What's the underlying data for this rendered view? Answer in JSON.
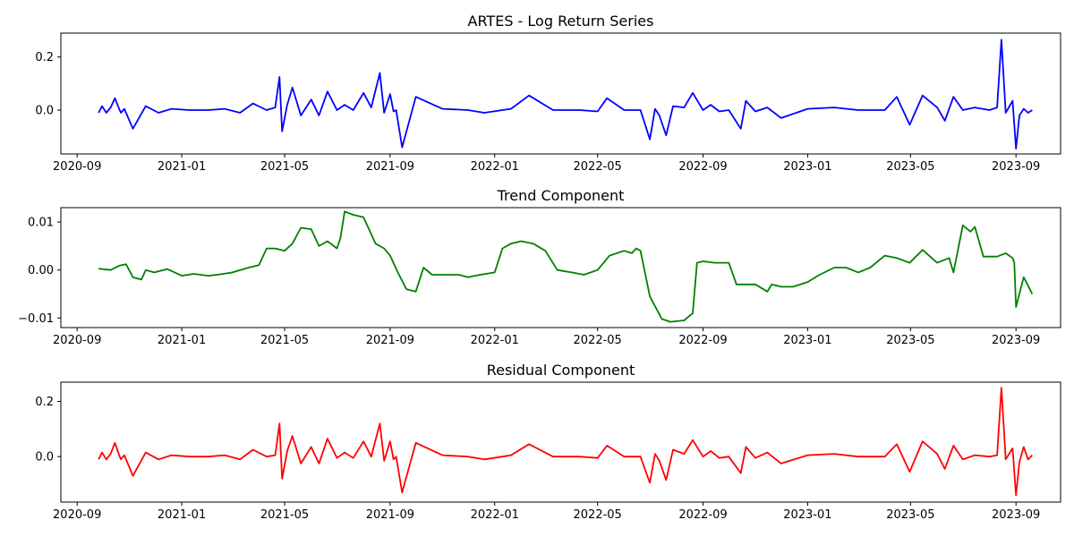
{
  "chart_data": [
    {
      "type": "line",
      "title": "ARTES - Log Return Series",
      "color": "#0000ff",
      "xlim": [
        "2020-08-13",
        "2023-10-23"
      ],
      "ylim": [
        -0.165,
        0.29
      ],
      "x_ticks": [
        "2020-09",
        "2021-01",
        "2021-05",
        "2021-09",
        "2022-01",
        "2022-05",
        "2022-09",
        "2023-01",
        "2023-05",
        "2023-09"
      ],
      "y_ticks": [
        "0.0",
        "0.2"
      ],
      "y_tick_values": [
        0.0,
        0.2
      ],
      "series": [
        {
          "x": [
            "2020-09-26",
            "2020-09-30",
            "2020-10-05",
            "2020-10-10",
            "2020-10-15",
            "2020-10-20",
            "2020-10-22",
            "2020-10-26",
            "2020-11-05",
            "2020-11-20",
            "2020-12-05",
            "2020-12-20",
            "2021-01-10",
            "2021-02-01",
            "2021-02-20",
            "2021-03-10",
            "2021-03-25",
            "2021-04-10",
            "2021-04-20",
            "2021-04-25",
            "2021-04-28",
            "2021-05-04",
            "2021-05-10",
            "2021-05-20",
            "2021-06-01",
            "2021-06-10",
            "2021-06-20",
            "2021-07-01",
            "2021-07-10",
            "2021-07-20",
            "2021-08-01",
            "2021-08-10",
            "2021-08-20",
            "2021-08-25",
            "2021-09-01",
            "2021-09-05",
            "2021-09-08",
            "2021-09-15",
            "2021-10-01",
            "2021-11-01",
            "2021-12-01",
            "2021-12-20",
            "2022-01-10",
            "2022-01-20",
            "2022-02-10",
            "2022-03-10",
            "2022-04-10",
            "2022-05-01",
            "2022-05-12",
            "2022-06-01",
            "2022-06-20",
            "2022-07-01",
            "2022-07-07",
            "2022-07-12",
            "2022-07-20",
            "2022-07-28",
            "2022-08-10",
            "2022-08-20",
            "2022-09-01",
            "2022-09-10",
            "2022-09-20",
            "2022-10-01",
            "2022-10-15",
            "2022-10-21",
            "2022-11-01",
            "2022-11-15",
            "2022-12-01",
            "2023-01-01",
            "2023-02-01",
            "2023-03-01",
            "2023-04-01",
            "2023-04-15",
            "2023-04-30",
            "2023-05-15",
            "2023-06-01",
            "2023-06-10",
            "2023-06-20",
            "2023-07-01",
            "2023-07-15",
            "2023-08-01",
            "2023-08-10",
            "2023-08-15",
            "2023-08-20",
            "2023-08-28",
            "2023-09-01",
            "2023-09-05",
            "2023-09-10",
            "2023-09-15",
            "2023-09-20"
          ],
          "y": [
            -0.01,
            0.015,
            -0.01,
            0.01,
            0.045,
            0.005,
            -0.01,
            0.005,
            -0.07,
            0.015,
            -0.01,
            0.005,
            0.0,
            0.0,
            0.005,
            -0.01,
            0.025,
            0.0,
            0.01,
            0.125,
            -0.08,
            0.02,
            0.085,
            -0.02,
            0.04,
            -0.02,
            0.07,
            0.0,
            0.02,
            0.0,
            0.065,
            0.01,
            0.14,
            -0.01,
            0.06,
            -0.005,
            0.0,
            -0.14,
            0.05,
            0.005,
            0.0,
            -0.01,
            0.0,
            0.005,
            0.055,
            0.0,
            0.0,
            -0.005,
            0.045,
            0.0,
            0.0,
            -0.11,
            0.005,
            -0.02,
            -0.095,
            0.015,
            0.01,
            0.065,
            0.0,
            0.02,
            -0.005,
            0.0,
            -0.07,
            0.035,
            -0.005,
            0.01,
            -0.03,
            0.005,
            0.01,
            0.0,
            0.0,
            0.05,
            -0.055,
            0.055,
            0.01,
            -0.04,
            0.05,
            0.0,
            0.01,
            0.0,
            0.01,
            0.265,
            -0.01,
            0.035,
            -0.145,
            -0.02,
            0.005,
            -0.01,
            0.0
          ]
        }
      ]
    },
    {
      "type": "line",
      "title": "Trend Component",
      "color": "#008000",
      "xlim": [
        "2020-08-13",
        "2023-10-23"
      ],
      "ylim": [
        -0.012,
        0.013
      ],
      "x_ticks": [
        "2020-09",
        "2021-01",
        "2021-05",
        "2021-09",
        "2022-01",
        "2022-05",
        "2022-09",
        "2023-01",
        "2023-05",
        "2023-09"
      ],
      "y_ticks": [
        "−0.01",
        "0.00",
        "0.01"
      ],
      "y_tick_values": [
        -0.01,
        0.0,
        0.01
      ],
      "series": [
        {
          "x": [
            "2020-09-26",
            "2020-10-10",
            "2020-10-20",
            "2020-10-28",
            "2020-11-05",
            "2020-11-15",
            "2020-11-20",
            "2020-11-30",
            "2020-12-15",
            "2021-01-01",
            "2021-01-15",
            "2021-02-01",
            "2021-02-15",
            "2021-03-01",
            "2021-03-20",
            "2021-04-01",
            "2021-04-10",
            "2021-04-20",
            "2021-05-01",
            "2021-05-10",
            "2021-05-20",
            "2021-06-01",
            "2021-06-10",
            "2021-06-20",
            "2021-07-01",
            "2021-07-05",
            "2021-07-10",
            "2021-07-20",
            "2021-08-01",
            "2021-08-15",
            "2021-08-25",
            "2021-09-01",
            "2021-09-10",
            "2021-09-20",
            "2021-10-01",
            "2021-10-10",
            "2021-10-20",
            "2021-11-01",
            "2021-11-20",
            "2021-12-01",
            "2021-12-15",
            "2022-01-01",
            "2022-01-10",
            "2022-01-20",
            "2022-02-01",
            "2022-02-15",
            "2022-03-01",
            "2022-03-15",
            "2022-04-01",
            "2022-04-15",
            "2022-05-01",
            "2022-05-15",
            "2022-06-01",
            "2022-06-10",
            "2022-06-15",
            "2022-06-20",
            "2022-07-01",
            "2022-07-15",
            "2022-07-25",
            "2022-08-10",
            "2022-08-20",
            "2022-08-25",
            "2022-09-01",
            "2022-09-15",
            "2022-10-01",
            "2022-10-10",
            "2022-10-15",
            "2022-11-01",
            "2022-11-15",
            "2022-11-20",
            "2022-12-01",
            "2022-12-15",
            "2023-01-01",
            "2023-01-15",
            "2023-02-01",
            "2023-02-15",
            "2023-03-01",
            "2023-03-15",
            "2023-04-01",
            "2023-04-15",
            "2023-04-30",
            "2023-05-15",
            "2023-06-01",
            "2023-06-15",
            "2023-06-20",
            "2023-07-01",
            "2023-07-10",
            "2023-07-15",
            "2023-07-25",
            "2023-08-10",
            "2023-08-20",
            "2023-08-28",
            "2023-08-30",
            "2023-09-01",
            "2023-09-10",
            "2023-09-20"
          ],
          "y": [
            0.0003,
            0.0,
            0.0009,
            0.0012,
            -0.0015,
            -0.002,
            0.0,
            -0.0005,
            0.0002,
            -0.0012,
            -0.0008,
            -0.0012,
            -0.0009,
            -0.0005,
            0.0005,
            0.001,
            0.0045,
            0.0045,
            0.004,
            0.0055,
            0.0088,
            0.0085,
            0.005,
            0.006,
            0.0045,
            0.0066,
            0.0122,
            0.0115,
            0.011,
            0.0055,
            0.0045,
            0.003,
            -0.0005,
            -0.004,
            -0.0045,
            0.0005,
            -0.001,
            -0.001,
            -0.001,
            -0.0015,
            -0.001,
            -0.0005,
            0.0045,
            0.0055,
            0.006,
            0.0055,
            0.004,
            0.0,
            -0.0005,
            -0.001,
            0.0,
            0.003,
            0.004,
            0.0035,
            0.0045,
            0.004,
            -0.0055,
            -0.0102,
            -0.0108,
            -0.0105,
            -0.009,
            0.0015,
            0.0018,
            0.0015,
            0.0015,
            -0.003,
            -0.003,
            -0.003,
            -0.0045,
            -0.003,
            -0.0035,
            -0.0035,
            -0.0025,
            -0.001,
            0.0005,
            0.0005,
            -0.0005,
            0.0005,
            0.003,
            0.0025,
            0.0015,
            0.0042,
            0.0015,
            0.0025,
            -0.0005,
            0.0093,
            0.008,
            0.009,
            0.0028,
            0.0028,
            0.0035,
            0.0025,
            0.0015,
            -0.0077,
            -0.0015,
            -0.005
          ]
        }
      ]
    },
    {
      "type": "line",
      "title": "Residual Component",
      "color": "#ff0000",
      "xlim": [
        "2020-08-13",
        "2023-10-23"
      ],
      "ylim": [
        -0.165,
        0.27
      ],
      "x_ticks": [
        "2020-09",
        "2021-01",
        "2021-05",
        "2021-09",
        "2022-01",
        "2022-05",
        "2022-09",
        "2023-01",
        "2023-05",
        "2023-09"
      ],
      "y_ticks": [
        "0.0",
        "0.2"
      ],
      "y_tick_values": [
        0.0,
        0.2
      ],
      "series": [
        {
          "x": [
            "2020-09-26",
            "2020-09-30",
            "2020-10-05",
            "2020-10-10",
            "2020-10-15",
            "2020-10-20",
            "2020-10-22",
            "2020-10-26",
            "2020-11-05",
            "2020-11-20",
            "2020-12-05",
            "2020-12-20",
            "2021-01-10",
            "2021-02-01",
            "2021-02-20",
            "2021-03-10",
            "2021-03-25",
            "2021-04-10",
            "2021-04-20",
            "2021-04-25",
            "2021-04-28",
            "2021-05-04",
            "2021-05-10",
            "2021-05-20",
            "2021-06-01",
            "2021-06-10",
            "2021-06-20",
            "2021-07-01",
            "2021-07-10",
            "2021-07-20",
            "2021-08-01",
            "2021-08-10",
            "2021-08-20",
            "2021-08-25",
            "2021-09-01",
            "2021-09-05",
            "2021-09-08",
            "2021-09-15",
            "2021-10-01",
            "2021-11-01",
            "2021-12-01",
            "2021-12-20",
            "2022-01-10",
            "2022-01-20",
            "2022-02-10",
            "2022-03-10",
            "2022-04-10",
            "2022-05-01",
            "2022-05-12",
            "2022-06-01",
            "2022-06-20",
            "2022-07-01",
            "2022-07-07",
            "2022-07-12",
            "2022-07-20",
            "2022-07-28",
            "2022-08-10",
            "2022-08-20",
            "2022-09-01",
            "2022-09-10",
            "2022-09-20",
            "2022-10-01",
            "2022-10-15",
            "2022-10-21",
            "2022-11-01",
            "2022-11-15",
            "2022-12-01",
            "2023-01-01",
            "2023-02-01",
            "2023-03-01",
            "2023-04-01",
            "2023-04-15",
            "2023-04-30",
            "2023-05-15",
            "2023-06-01",
            "2023-06-10",
            "2023-06-20",
            "2023-07-01",
            "2023-07-15",
            "2023-08-01",
            "2023-08-10",
            "2023-08-15",
            "2023-08-20",
            "2023-08-28",
            "2023-09-01",
            "2023-09-05",
            "2023-09-10",
            "2023-09-15",
            "2023-09-20"
          ],
          "y": [
            -0.01,
            0.015,
            -0.01,
            0.01,
            0.05,
            0.005,
            -0.01,
            0.005,
            -0.07,
            0.015,
            -0.01,
            0.005,
            0.0,
            0.0,
            0.005,
            -0.01,
            0.025,
            0.0,
            0.005,
            0.12,
            -0.08,
            0.02,
            0.075,
            -0.025,
            0.035,
            -0.025,
            0.065,
            -0.005,
            0.015,
            -0.005,
            0.055,
            0.0,
            0.12,
            -0.015,
            0.055,
            -0.01,
            0.0,
            -0.13,
            0.05,
            0.005,
            0.0,
            -0.01,
            0.0,
            0.005,
            0.045,
            0.0,
            0.0,
            -0.005,
            0.04,
            0.0,
            0.0,
            -0.095,
            0.01,
            -0.015,
            -0.085,
            0.025,
            0.01,
            0.06,
            0.0,
            0.02,
            -0.005,
            0.0,
            -0.06,
            0.035,
            -0.005,
            0.015,
            -0.025,
            0.005,
            0.01,
            0.0,
            0.0,
            0.045,
            -0.055,
            0.055,
            0.01,
            -0.045,
            0.04,
            -0.01,
            0.005,
            0.0,
            0.005,
            0.25,
            -0.01,
            0.03,
            -0.14,
            -0.02,
            0.035,
            -0.01,
            0.005
          ]
        }
      ]
    }
  ]
}
